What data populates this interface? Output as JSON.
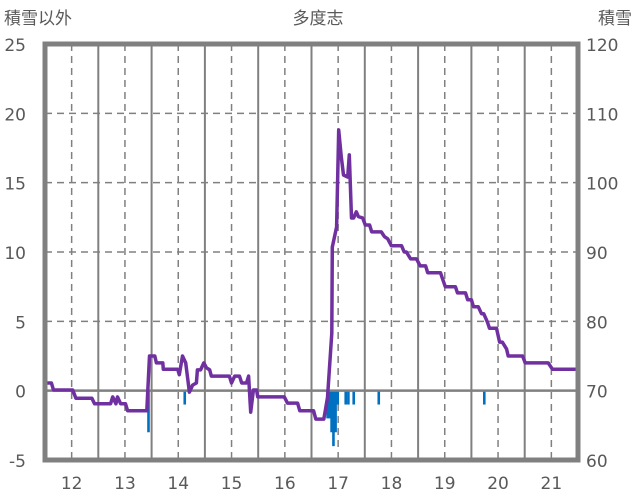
{
  "chart_data": {
    "type": "line",
    "title": "多度志",
    "ylabel_left": "積雪以外",
    "ylabel_right": "積雪",
    "xlim": [
      11.5,
      21.5
    ],
    "ylim_left": [
      -5,
      25
    ],
    "ylim_right": [
      60,
      120
    ],
    "x_ticks": [
      12,
      13,
      14,
      15,
      16,
      17,
      18,
      19,
      20,
      21
    ],
    "x_tick_labels": [
      "12",
      "13",
      "14",
      "15",
      "16",
      "17",
      "18",
      "19",
      "20",
      "21"
    ],
    "y_left_ticks": [
      -5,
      0,
      5,
      10,
      15,
      20,
      25
    ],
    "y_left_tick_labels": [
      "-5",
      "0",
      "5",
      "10",
      "15",
      "20",
      "25"
    ],
    "y_right_ticks": [
      60,
      70,
      80,
      90,
      100,
      110,
      120
    ],
    "y_right_tick_labels": [
      "60",
      "70",
      "80",
      "90",
      "100",
      "110",
      "120"
    ],
    "grid": true,
    "colors": {
      "snow_depth": "#7030A0",
      "other": "#0070C0",
      "grid": "#808080",
      "frame": "#808080",
      "text": "#595959"
    },
    "series": [
      {
        "name": "積雪",
        "type": "line",
        "axis": "right",
        "x": [
          11.49,
          11.62,
          11.66,
          12.02,
          12.08,
          12.38,
          12.43,
          12.73,
          12.77,
          12.83,
          12.86,
          12.92,
          13.01,
          13.05,
          13.41,
          13.46,
          13.56,
          13.59,
          13.71,
          13.72,
          13.99,
          14.02,
          14.08,
          14.14,
          14.21,
          14.27,
          14.34,
          14.36,
          14.42,
          14.48,
          14.53,
          14.59,
          14.62,
          14.96,
          15.0,
          15.06,
          15.15,
          15.19,
          15.28,
          15.32,
          15.36,
          15.41,
          15.47,
          15.49,
          15.99,
          16.05,
          16.24,
          16.28,
          16.54,
          16.58,
          16.73,
          16.76,
          16.8,
          16.88,
          16.89,
          16.97,
          17.01,
          17.06,
          17.1,
          17.18,
          17.21,
          17.25,
          17.29,
          17.34,
          17.38,
          17.46,
          17.51,
          17.59,
          17.63,
          17.81,
          17.87,
          17.93,
          18.0,
          18.19,
          18.24,
          18.28,
          18.36,
          18.47,
          18.54,
          18.64,
          18.68,
          18.92,
          18.96,
          19.01,
          19.2,
          19.24,
          19.39,
          19.43,
          19.5,
          19.54,
          19.63,
          19.69,
          19.73,
          19.8,
          19.84,
          19.97,
          20.03,
          20.08,
          20.16,
          20.19,
          20.46,
          20.51,
          20.94,
          21.02,
          21.47
        ],
        "y": [
          71.1,
          71.1,
          70.1,
          70.1,
          68.9,
          68.9,
          68.1,
          68.1,
          69.1,
          68.1,
          69.1,
          68.1,
          68.1,
          67.1,
          67.1,
          75.0,
          75.0,
          74.0,
          74.0,
          73.1,
          73.1,
          72.3,
          75.0,
          74.0,
          69.8,
          70.8,
          71.1,
          73.0,
          73.0,
          74.0,
          73.3,
          73.0,
          72.1,
          72.1,
          71.1,
          72.1,
          72.1,
          71.1,
          71.1,
          72.1,
          66.9,
          70.1,
          70.1,
          69.1,
          69.1,
          68.2,
          68.2,
          67.1,
          67.1,
          65.9,
          65.9,
          67.2,
          69.0,
          78.3,
          90.7,
          93.6,
          107.6,
          103.7,
          101.1,
          100.8,
          104.0,
          94.9,
          94.9,
          95.8,
          95.1,
          94.9,
          93.9,
          93.9,
          92.9,
          92.9,
          92.2,
          91.9,
          90.9,
          90.9,
          90.0,
          90.0,
          89.0,
          89.0,
          88.0,
          88.0,
          87.0,
          87.0,
          86.1,
          85.0,
          85.0,
          84.1,
          84.1,
          83.1,
          83.1,
          82.1,
          82.1,
          81.1,
          81.1,
          79.9,
          79.0,
          79.0,
          77.0,
          77.0,
          76.0,
          75.0,
          75.0,
          74.0,
          74.0,
          73.1,
          73.1
        ]
      },
      {
        "name": "積雪以外",
        "type": "bar",
        "axis": "left",
        "x": [
          13.44,
          14.12,
          15.34,
          16.8,
          16.84,
          16.875,
          16.91,
          16.95,
          16.99,
          17.14,
          17.19,
          17.29,
          17.76,
          19.74
        ],
        "y": [
          -3,
          -1,
          -1,
          -2,
          -2,
          -3,
          -4,
          -3,
          -1,
          -1,
          -1,
          -1,
          -1,
          -1
        ]
      }
    ]
  }
}
